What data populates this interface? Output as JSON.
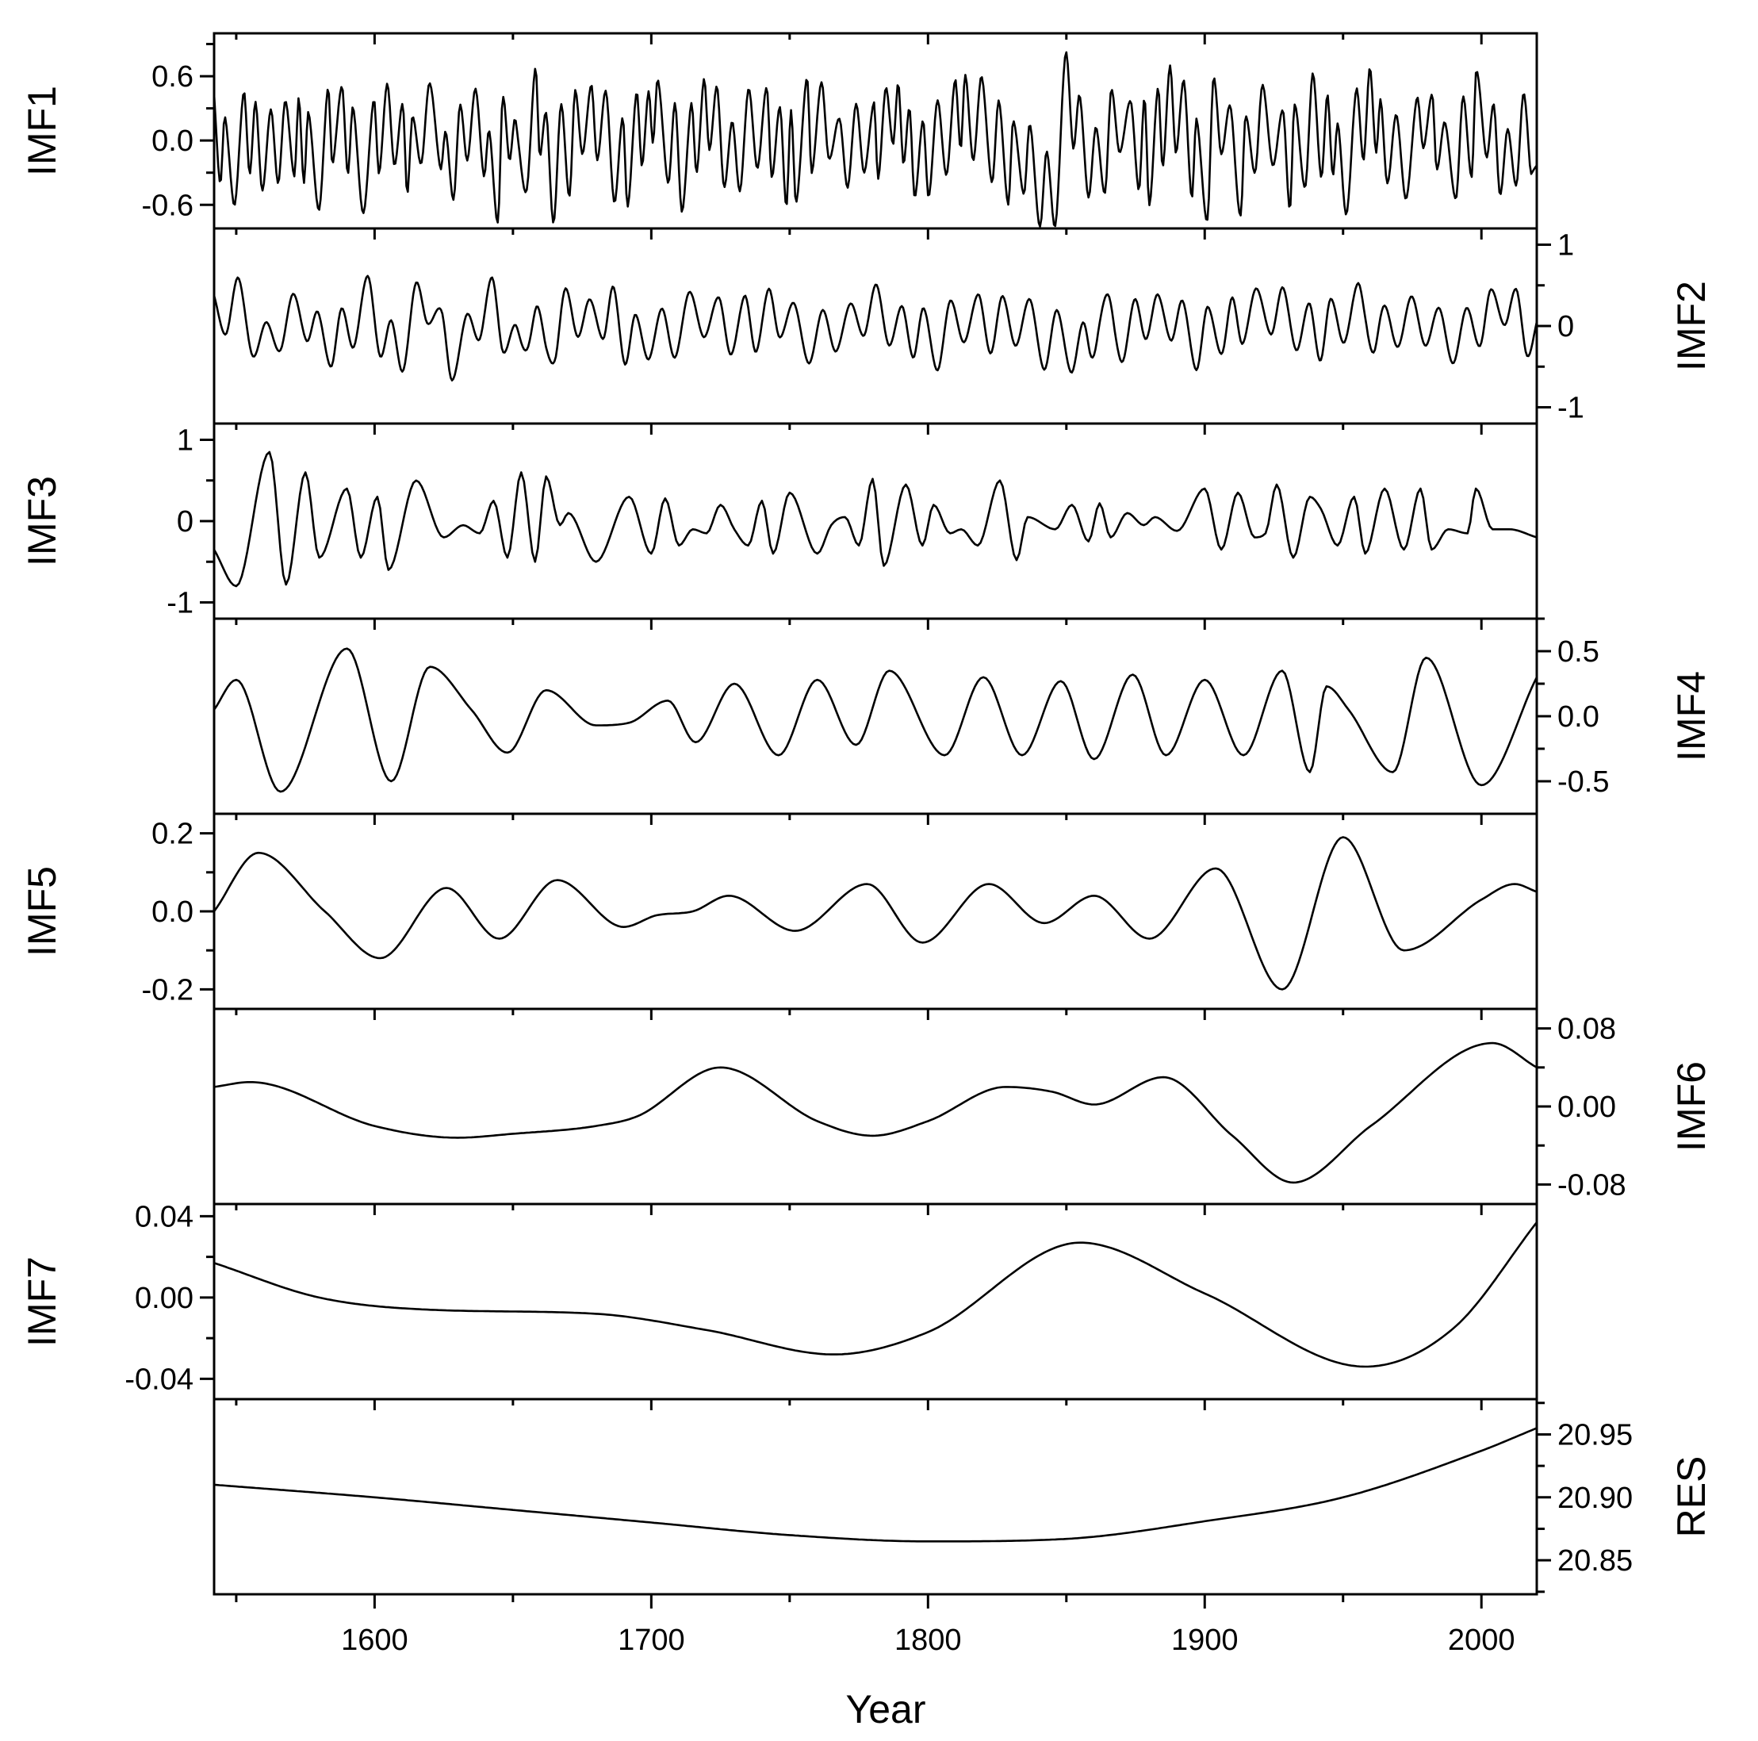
{
  "chart_data": {
    "type": "line",
    "layout": "stacked-panels",
    "xlabel": "Year",
    "xlim": [
      1542,
      2020
    ],
    "xticks": [
      1600,
      1700,
      1800,
      1900,
      2000
    ],
    "xtick_labels": [
      "1600",
      "1700",
      "1800",
      "1900",
      "2000"
    ],
    "x_minor_step": 50,
    "grid": false,
    "panels": [
      {
        "label": "IMF1",
        "axis_side": "left",
        "ylim": [
          -0.82,
          1.0
        ],
        "yticks": [
          -0.6,
          0.0,
          0.6
        ],
        "ytick_labels": [
          "-0.6",
          "0.0",
          "0.6"
        ],
        "minor_step": 0.3,
        "curve": {
          "kind": "noise",
          "amp": 0.28,
          "mean_period": 5.5,
          "period_jitter": 2.5,
          "amp_jitter": 0.8,
          "seed": 11
        },
        "x": [
          1542,
          1546,
          1549,
          1553,
          1560,
          1570,
          1580,
          1588,
          1596,
          1604,
          1612,
          1620,
          1628,
          1636,
          1644,
          1648,
          1652,
          1660,
          1664,
          1672,
          1680,
          1690,
          1700,
          1710,
          1720,
          1730,
          1740,
          1750,
          1760,
          1772,
          1785,
          1800,
          1815,
          1830,
          1845,
          1850,
          1860,
          1870,
          1880,
          1890,
          1900,
          1906,
          1912,
          1920,
          1930,
          1940,
          1950,
          1960,
          1970,
          1980,
          1990,
          2000,
          2008,
          2020
        ],
        "y": [
          0.3,
          -0.5,
          -0.82,
          0.45,
          -0.2,
          0.3,
          -0.4,
          0.6,
          -0.5,
          0.3,
          -0.1,
          0.5,
          -0.55,
          0.45,
          -0.6,
          0.72,
          -0.5,
          0.6,
          -0.62,
          0.1,
          0.45,
          -0.4,
          0.5,
          -0.4,
          0.55,
          -0.3,
          0.5,
          -0.45,
          0.6,
          -0.4,
          0.5,
          -0.45,
          0.45,
          -0.4,
          -0.75,
          0.7,
          -0.55,
          0.45,
          -0.2,
          0.5,
          -0.6,
          0.8,
          -0.7,
          0.5,
          -0.5,
          0.45,
          -0.5,
          0.5,
          -0.45,
          0.5,
          -0.4,
          0.55,
          -0.5,
          0.45
        ]
      },
      {
        "label": "IMF2",
        "axis_side": "right",
        "ylim": [
          -1.2,
          1.2
        ],
        "yticks": [
          -1,
          0,
          1
        ],
        "ytick_labels": [
          "-1",
          "0",
          "1"
        ],
        "minor_step": 0.5,
        "curve": {
          "kind": "osc",
          "amp": 0.28,
          "mean_period": 9,
          "period_jitter": 1.8,
          "amp_jitter": 0.7,
          "seed": 23
        },
        "x": [
          1542,
          1548,
          1560,
          1572,
          1584,
          1596,
          1608,
          1618,
          1628,
          1640,
          1652,
          1658,
          1662,
          1668,
          1680,
          1700,
          1720,
          1732,
          1744,
          1760,
          1780,
          1800,
          1820,
          1840,
          1858,
          1862,
          1868,
          1880,
          1900,
          1920,
          1940,
          1958,
          1962,
          1970,
          1990,
          2010,
          2020
        ],
        "y": [
          0.2,
          0.55,
          -0.45,
          0.35,
          -0.45,
          0.5,
          -0.4,
          0.6,
          -0.6,
          0.4,
          -0.5,
          0.6,
          -0.85,
          0.2,
          0.2,
          -0.25,
          0.2,
          -0.2,
          0.45,
          -0.3,
          0.25,
          -0.25,
          0.15,
          -0.2,
          -0.55,
          0.65,
          -0.5,
          0.35,
          -0.4,
          0.35,
          -0.3,
          0.6,
          -0.65,
          0.3,
          -0.35,
          0.5,
          -0.3
        ]
      },
      {
        "label": "IMF3",
        "axis_side": "left",
        "ylim": [
          -1.2,
          1.2
        ],
        "yticks": [
          -1,
          0,
          1
        ],
        "ytick_labels": [
          "-1",
          "0",
          "1"
        ],
        "minor_step": 0.5,
        "x": [
          1542,
          1550,
          1562,
          1568,
          1575,
          1580,
          1590,
          1595,
          1601,
          1605,
          1615,
          1625,
          1632,
          1638,
          1643,
          1648,
          1653,
          1658,
          1662,
          1667,
          1670,
          1680,
          1692,
          1700,
          1705,
          1710,
          1715,
          1720,
          1725,
          1730,
          1735,
          1740,
          1744,
          1750,
          1760,
          1765,
          1770,
          1775,
          1780,
          1784,
          1792,
          1798,
          1802,
          1808,
          1812,
          1818,
          1826,
          1832,
          1836,
          1846,
          1852,
          1858,
          1862,
          1866,
          1872,
          1878,
          1882,
          1890,
          1900,
          1906,
          1912,
          1918,
          1922,
          1926,
          1932,
          1938,
          1942,
          1948,
          1954,
          1958,
          1965,
          1972,
          1978,
          1982,
          1988,
          1995,
          1998,
          2004,
          2010,
          2020
        ],
        "y": [
          -0.35,
          -0.8,
          0.85,
          -0.78,
          0.6,
          -0.45,
          0.4,
          -0.45,
          0.3,
          -0.6,
          0.5,
          -0.2,
          -0.05,
          -0.15,
          0.25,
          -0.45,
          0.6,
          -0.5,
          0.55,
          -0.05,
          0.1,
          -0.5,
          0.3,
          -0.4,
          0.28,
          -0.3,
          -0.1,
          -0.15,
          0.2,
          -0.1,
          -0.3,
          0.25,
          -0.4,
          0.35,
          -0.4,
          -0.05,
          0.05,
          -0.3,
          0.52,
          -0.55,
          0.45,
          -0.3,
          0.2,
          -0.15,
          -0.1,
          -0.3,
          0.5,
          -0.48,
          0.05,
          -0.1,
          0.2,
          -0.25,
          0.22,
          -0.2,
          0.1,
          -0.05,
          0.05,
          -0.12,
          0.4,
          -0.35,
          0.35,
          -0.2,
          -0.15,
          0.45,
          -0.45,
          0.3,
          0.15,
          -0.3,
          0.3,
          -0.4,
          0.4,
          -0.35,
          0.4,
          -0.35,
          -0.1,
          -0.15,
          0.4,
          -0.1,
          -0.1,
          -0.2
        ]
      },
      {
        "label": "IMF4",
        "axis_side": "right",
        "ylim": [
          -0.75,
          0.75
        ],
        "yticks": [
          -0.5,
          0.0,
          0.5
        ],
        "ytick_labels": [
          "-0.5",
          "0.0",
          "0.5"
        ],
        "minor_step": 0.25,
        "x": [
          1542,
          1550,
          1566,
          1590,
          1606,
          1620,
          1635,
          1648,
          1662,
          1680,
          1692,
          1706,
          1716,
          1730,
          1746,
          1760,
          1774,
          1786,
          1806,
          1820,
          1834,
          1848,
          1860,
          1874,
          1886,
          1900,
          1914,
          1928,
          1938,
          1944,
          1952,
          1968,
          1980,
          2000,
          2020
        ],
        "y": [
          0.05,
          0.28,
          -0.58,
          0.52,
          -0.5,
          0.38,
          0.05,
          -0.28,
          0.2,
          -0.07,
          -0.05,
          0.12,
          -0.2,
          0.25,
          -0.3,
          0.28,
          -0.22,
          0.35,
          -0.3,
          0.3,
          -0.3,
          0.27,
          -0.33,
          0.32,
          -0.3,
          0.28,
          -0.3,
          0.35,
          -0.43,
          0.23,
          0.05,
          -0.43,
          0.45,
          -0.53,
          0.3
        ]
      },
      {
        "label": "IMF5",
        "axis_side": "left",
        "ylim": [
          -0.25,
          0.25
        ],
        "yticks": [
          -0.2,
          0.0,
          0.2
        ],
        "ytick_labels": [
          "-0.2",
          "0.0",
          "0.2"
        ],
        "minor_step": 0.1,
        "x": [
          1542,
          1558,
          1582,
          1602,
          1626,
          1645,
          1666,
          1690,
          1702,
          1715,
          1728,
          1752,
          1778,
          1798,
          1822,
          1842,
          1860,
          1880,
          1904,
          1928,
          1950,
          1972,
          2000,
          2012,
          2020
        ],
        "y": [
          0.0,
          0.15,
          0.0,
          -0.12,
          0.06,
          -0.07,
          0.08,
          -0.04,
          -0.01,
          0.0,
          0.04,
          -0.05,
          0.07,
          -0.08,
          0.07,
          -0.03,
          0.04,
          -0.07,
          0.11,
          -0.2,
          0.19,
          -0.1,
          0.03,
          0.07,
          0.05
        ]
      },
      {
        "label": "IMF6",
        "axis_side": "right",
        "ylim": [
          -0.1,
          0.1
        ],
        "yticks": [
          -0.08,
          0.0,
          0.08
        ],
        "ytick_labels": [
          "-0.08",
          "0.00",
          "0.08"
        ],
        "minor_step": 0.04,
        "x": [
          1542,
          1555,
          1600,
          1630,
          1650,
          1680,
          1695,
          1725,
          1760,
          1780,
          1800,
          1828,
          1845,
          1860,
          1885,
          1910,
          1932,
          1960,
          2004,
          2020
        ],
        "y": [
          0.02,
          0.025,
          -0.02,
          -0.032,
          -0.028,
          -0.02,
          -0.01,
          0.04,
          -0.015,
          -0.03,
          -0.015,
          0.02,
          0.015,
          0.002,
          0.03,
          -0.03,
          -0.078,
          -0.02,
          0.065,
          0.04
        ]
      },
      {
        "label": "IMF7",
        "axis_side": "left",
        "ylim": [
          -0.05,
          0.046
        ],
        "yticks": [
          -0.04,
          0.0,
          0.04
        ],
        "ytick_labels": [
          "-0.04",
          "0.00",
          "0.04"
        ],
        "minor_step": 0.02,
        "x": [
          1542,
          1580,
          1620,
          1680,
          1720,
          1766,
          1800,
          1855,
          1900,
          1958,
          1990,
          2020
        ],
        "y": [
          0.017,
          0.0,
          -0.006,
          -0.008,
          -0.016,
          -0.028,
          -0.017,
          0.027,
          0.002,
          -0.034,
          -0.015,
          0.037
        ]
      },
      {
        "label": "RES",
        "axis_side": "right",
        "ylim": [
          20.823,
          20.978
        ],
        "yticks": [
          20.85,
          20.9,
          20.95
        ],
        "ytick_labels": [
          "20.85",
          "20.90",
          "20.95"
        ],
        "minor_step": 0.025,
        "x": [
          1542,
          1600,
          1650,
          1700,
          1750,
          1800,
          1850,
          1900,
          1950,
          2000,
          2020
        ],
        "y": [
          20.91,
          20.9,
          20.89,
          20.88,
          20.87,
          20.865,
          20.867,
          20.881,
          20.9,
          20.937,
          20.955
        ]
      }
    ]
  }
}
